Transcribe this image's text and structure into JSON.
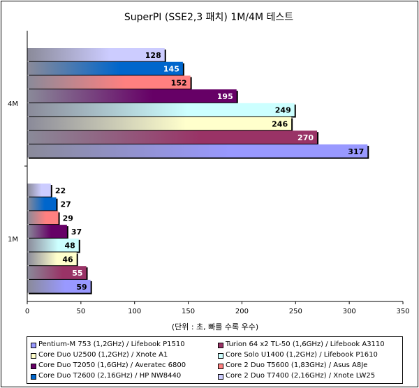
{
  "chart_data": {
    "type": "bar",
    "orientation": "horizontal",
    "title": "SuperPI (SSE2,3 패치) 1M/4M 테스트",
    "xlabel": "(단위 : 초, 빠를 수록 우수)",
    "ylabel": "",
    "categories": [
      "4M",
      "1M"
    ],
    "xlim": [
      0,
      350
    ],
    "xticks": [
      0,
      50,
      100,
      150,
      200,
      250,
      300,
      350
    ],
    "grid": false,
    "legend_position": "bottom",
    "series": [
      {
        "name": "Core 2 Duo T7400 (2,16GHz) / Xnote LW25",
        "color": "#ccccff",
        "values": [
          128,
          22
        ]
      },
      {
        "name": "Core Duo T2600 (2,16GHz) / HP NW8440",
        "color": "#0066cc",
        "values": [
          145,
          27
        ]
      },
      {
        "name": "Core 2 Duo T5600 (1,83GHz) / Asus A8Je",
        "color": "#ff8080",
        "values": [
          152,
          29
        ]
      },
      {
        "name": "Core Duo T2050 (1,6GHz) / Averatec 6800",
        "color": "#660066",
        "values": [
          195,
          37
        ]
      },
      {
        "name": "Core Solo U1400 (1,2GHz) / Lifebook P1610",
        "color": "#ccffff",
        "values": [
          249,
          48
        ]
      },
      {
        "name": "Core Duo U2500 (1,2GHz) / Xnote A1",
        "color": "#ffffcc",
        "values": [
          246,
          46
        ]
      },
      {
        "name": "Turion 64 x2 TL-50 (1,6GHz) / Lifebook A3110",
        "color": "#993366",
        "values": [
          270,
          55
        ]
      },
      {
        "name": "Pentium-M 753 (1,2GHz) / Lifebook P1510",
        "color": "#9999ff",
        "values": [
          317,
          59
        ]
      }
    ],
    "legend_order": [
      "Pentium-M 753 (1,2GHz) / Lifebook P1510",
      "Turion 64 x2 TL-50 (1,6GHz) / Lifebook A3110",
      "Core Duo U2500 (1,2GHz) / Xnote A1",
      "Core Solo U1400 (1,2GHz) / Lifebook P1610",
      "Core Duo T2050 (1,6GHz) / Averatec 6800",
      "Core 2 Duo T5600 (1,83GHz) / Asus A8Je",
      "Core Duo T2600 (2,16GHz) / HP NW8440",
      "Core 2 Duo T7400 (2,16GHz) / Xnote LW25"
    ]
  }
}
